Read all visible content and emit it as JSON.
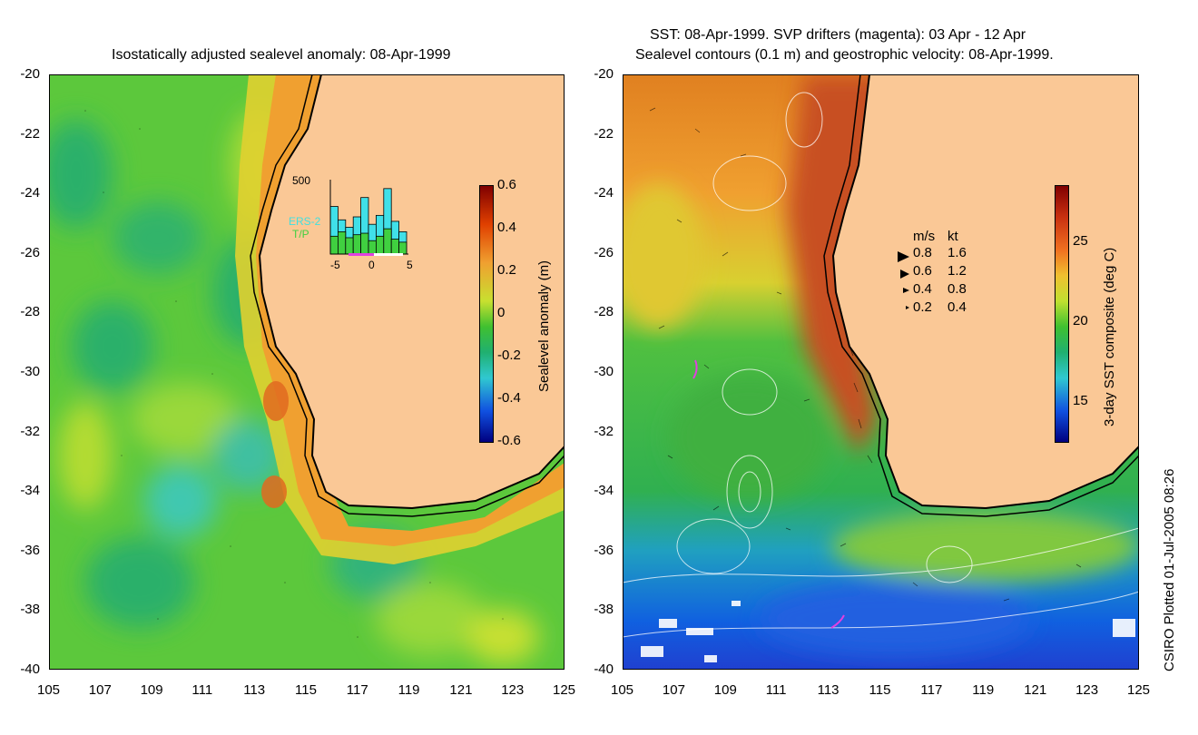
{
  "left_panel": {
    "title": "Isostatically adjusted sealevel anomaly: 08-Apr-1999",
    "colorbar": {
      "label": "Sealevel anomaly (m)",
      "ticks": [
        "0.6",
        "0.4",
        "0.2",
        "0",
        "-0.2",
        "-0.4",
        "-0.6"
      ],
      "range": [
        -0.6,
        0.6
      ]
    },
    "inset": {
      "ymax_label": "500",
      "x_ticks": [
        "-5",
        "0",
        "5"
      ],
      "legend_ers2": "ERS-2",
      "legend_tp": "T/P",
      "ers2_counts": [
        320,
        230,
        180,
        250,
        380,
        200,
        260,
        440,
        220,
        150
      ],
      "tp_counts": [
        120,
        150,
        110,
        130,
        140,
        90,
        120,
        170,
        100,
        80
      ],
      "ymax": 500
    }
  },
  "right_panel": {
    "title_line1": "SST: 08-Apr-1999. SVP drifters (magenta): 03 Apr - 12 Apr",
    "title_line2": "Sealevel contours (0.1 m) and geostrophic velocity: 08-Apr-1999.",
    "colorbar": {
      "label": "3-day SST composite (deg C)",
      "ticks": [
        "25",
        "20",
        "15"
      ],
      "range": [
        12.5,
        28.5
      ]
    },
    "velocity_legend": {
      "header_ms": "m/s",
      "header_kt": "kt",
      "rows": [
        {
          "ms": "0.8",
          "kt": "1.6"
        },
        {
          "ms": "0.6",
          "kt": "1.2"
        },
        {
          "ms": "0.4",
          "kt": "0.8"
        },
        {
          "ms": "0.2",
          "kt": "0.4"
        }
      ]
    }
  },
  "axes": {
    "lat_ticks": [
      "-20",
      "-22",
      "-24",
      "-26",
      "-28",
      "-30",
      "-32",
      "-34",
      "-36",
      "-38",
      "-40"
    ],
    "lon_ticks": [
      "105",
      "107",
      "109",
      "111",
      "113",
      "115",
      "117",
      "119",
      "121",
      "123",
      "125"
    ],
    "lat_range": [
      -40,
      -20
    ],
    "lon_range": [
      105,
      125
    ]
  },
  "credit": "CSIRO Plotted 01-Jul-2005 08:26",
  "colors": {
    "land": "#fac896",
    "sla_base": "#5cc83c",
    "sst_warm": "#c85020",
    "drifter": "#e040e0"
  }
}
